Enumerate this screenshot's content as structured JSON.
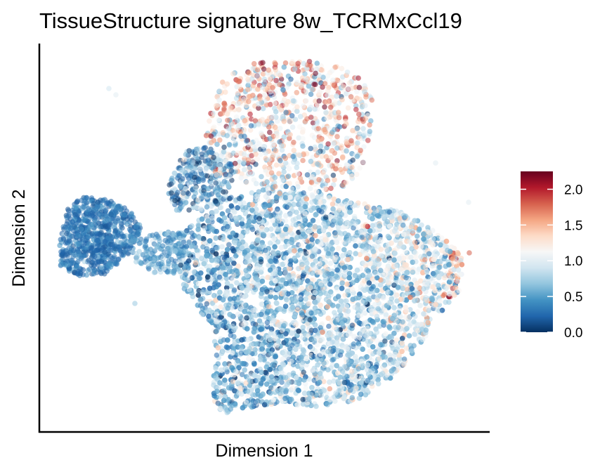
{
  "chart_data": {
    "type": "scatter",
    "title": "TissueStructure signature 8w_TCRMxCcl19",
    "xlabel": "Dimension 1",
    "ylabel": "Dimension 2",
    "x_ticks_shown": false,
    "y_ticks_shown": false,
    "grid": false,
    "legend": {
      "type": "colorbar",
      "placement": "right",
      "range": [
        0.0,
        2.25
      ],
      "ticks": [
        "0.0",
        "0.5",
        "1.0",
        "1.5",
        "2.0"
      ],
      "tick_values": [
        0.0,
        0.5,
        1.0,
        1.5,
        2.0
      ],
      "colormap": "RdBu reversed",
      "colors": [
        "#053061",
        "#2166ac",
        "#4393c3",
        "#92c5de",
        "#d1e5f0",
        "#f7f7f7",
        "#fddbc7",
        "#f4a582",
        "#d6604d",
        "#b2182b",
        "#67001f"
      ]
    },
    "point_opacity": 0.55,
    "points_summary": "Several thousand cells forming a UMAP-like cloud: a dark-blue cluster on the left, a large blue main body in the center-bottom, and a sparser upper lobe with mixed light/red values; red points concentrated at the upper lobe and the right edge."
  }
}
